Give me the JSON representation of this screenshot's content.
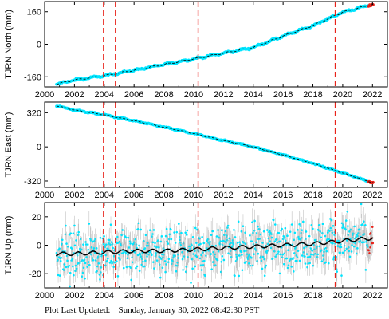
{
  "footer": {
    "label": "Plot Last Updated:",
    "timestamp": "Sunday, January 30, 2022 08:42:30 PST"
  },
  "colors": {
    "data": "#00e5ff",
    "error_bars": "#a9a9a9",
    "model": "#000000",
    "events": "#e8231a",
    "recent": "#e8231a"
  },
  "chart_data": [
    {
      "type": "scatter",
      "ylabel": "TJRN North (mm)",
      "xlim": [
        2000,
        2023
      ],
      "ylim": [
        -210,
        210
      ],
      "xticks": [
        "2000",
        "2002",
        "2004",
        "2006",
        "2008",
        "2010",
        "2012",
        "2014",
        "2016",
        "2018",
        "2020",
        "2022"
      ],
      "yticks": [
        -160,
        0,
        160
      ],
      "events": [
        2003.95,
        2004.75,
        2010.3,
        2019.5
      ],
      "series": [
        {
          "x": [
            2000.8,
            2002,
            2004,
            2006,
            2008,
            2010,
            2012,
            2014,
            2016,
            2018,
            2020,
            2022
          ],
          "y": [
            -196,
            -176,
            -155,
            -128,
            -100,
            -72,
            -44,
            -16,
            40,
            92,
            158,
            196
          ]
        }
      ]
    },
    {
      "type": "scatter",
      "ylabel": "TJRN East (mm)",
      "xlim": [
        2000,
        2023
      ],
      "ylim": [
        -380,
        420
      ],
      "xticks": [
        "2000",
        "2002",
        "2004",
        "2006",
        "2008",
        "2010",
        "2012",
        "2014",
        "2016",
        "2018",
        "2020",
        "2022"
      ],
      "yticks": [
        -320,
        0,
        320
      ],
      "events": [
        2003.95,
        2004.75,
        2010.3,
        2019.5
      ],
      "series": [
        {
          "x": [
            2000.8,
            2002,
            2004,
            2006,
            2008,
            2010,
            2012,
            2014,
            2016,
            2018,
            2020,
            2022
          ],
          "y": [
            385,
            345,
            300,
            245,
            185,
            125,
            60,
            0,
            -75,
            -155,
            -245,
            -335
          ]
        }
      ]
    },
    {
      "type": "scatter",
      "ylabel": "TJRN Up (mm)",
      "xlim": [
        2000,
        2023
      ],
      "ylim": [
        -30,
        30
      ],
      "xticks": [
        "2000",
        "2002",
        "2004",
        "2006",
        "2008",
        "2010",
        "2012",
        "2014",
        "2016",
        "2018",
        "2020",
        "2022"
      ],
      "yticks": [
        -20,
        0,
        20
      ],
      "events": [
        2003.95,
        2004.75,
        2010.3,
        2019.5
      ],
      "series": [
        {
          "x": [
            2000.8,
            2002,
            2004,
            2006,
            2008,
            2010,
            2012,
            2014,
            2016,
            2018,
            2020,
            2022
          ],
          "y": [
            -6,
            -6,
            -5,
            -4,
            -4,
            -3,
            -2,
            -1,
            0,
            1,
            3,
            5
          ]
        }
      ]
    }
  ]
}
